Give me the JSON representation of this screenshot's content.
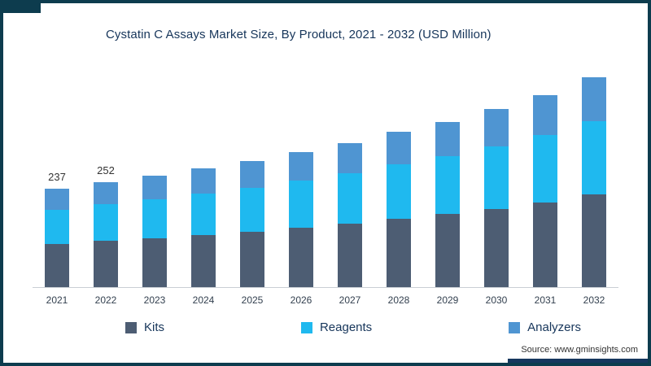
{
  "title": "Cystatin C Assays Market Size, By Product, 2021 - 2032 (USD Million)",
  "source": "Source: www.gminsights.com",
  "colors": {
    "kits": "#4d5d73",
    "reagents": "#1fb9ef",
    "analyzers": "#4f95d2",
    "frame": "#0d3c4e",
    "bottom_accent": "#16375e",
    "title_text": "#16355a",
    "axis_line": "#c9ced4"
  },
  "legend": [
    {
      "label": "Kits",
      "color_key": "kits"
    },
    {
      "label": "Reagents",
      "color_key": "reagents"
    },
    {
      "label": "Analyzers",
      "color_key": "analyzers"
    }
  ],
  "chart_data": {
    "type": "bar",
    "stacked": true,
    "title": "Cystatin C Assays Market Size, By Product, 2021 - 2032 (USD Million)",
    "xlabel": "",
    "ylabel": "",
    "unit": "USD Million",
    "legend_position": "bottom",
    "grid": false,
    "categories": [
      "2021",
      "2022",
      "2023",
      "2024",
      "2025",
      "2026",
      "2027",
      "2028",
      "2029",
      "2030",
      "2031",
      "2032"
    ],
    "series": [
      {
        "name": "Kits",
        "values": [
          104,
          111,
          118,
          125,
          134,
          143,
          153,
          164,
          176,
          189,
          204,
          223
        ]
      },
      {
        "name": "Reagents",
        "values": [
          83,
          88,
          94,
          100,
          106,
          114,
          122,
          131,
          140,
          151,
          162,
          177
        ]
      },
      {
        "name": "Analyzers",
        "values": [
          50,
          53,
          56,
          60,
          64,
          69,
          73,
          78,
          83,
          90,
          97,
          106
        ]
      }
    ],
    "totals": [
      237,
      252,
      268,
      285,
      304,
      326,
      348,
      373,
      399,
      430,
      463,
      506
    ],
    "total_labels_shown": {
      "2021": "237",
      "2022": "252"
    }
  }
}
